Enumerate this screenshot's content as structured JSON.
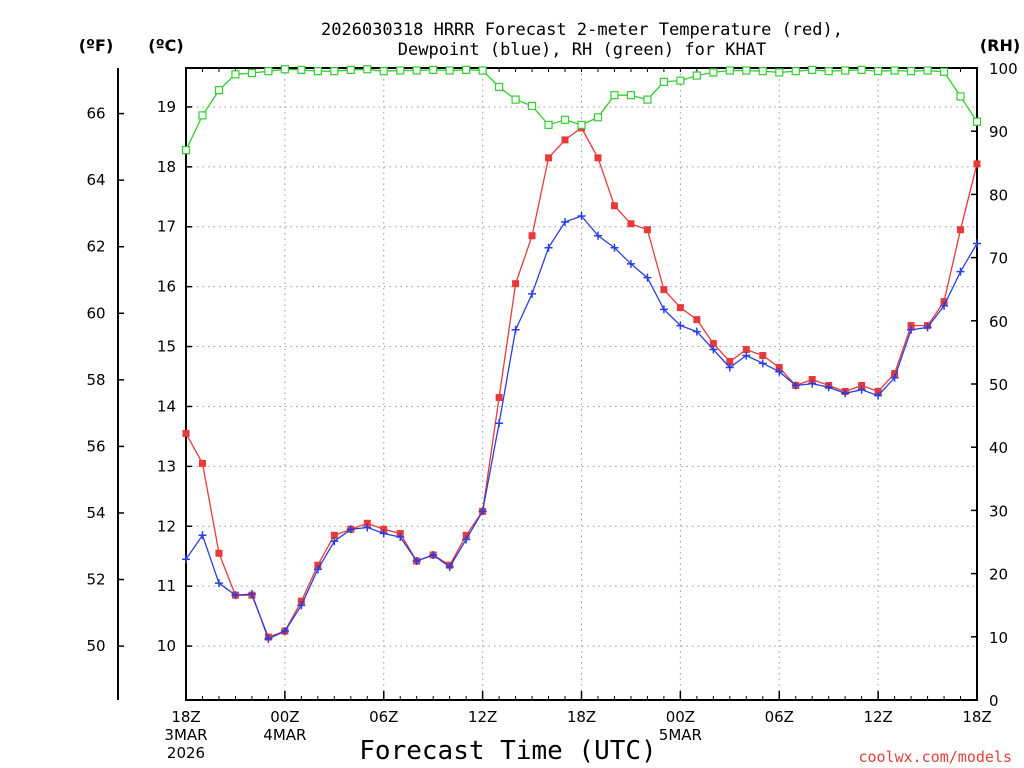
{
  "chart_data": {
    "type": "line",
    "title_line1": "2026030318 HRRR Forecast 2-meter Temperature (red),",
    "title_line2": "Dewpoint (blue), RH (green) for KHAT",
    "xlabel": "Forecast Time (UTC)",
    "credit": "coolwx.com/models",
    "ylabel_f": "(ºF)",
    "ylabel_c": "(ºC)",
    "ylabel_rh": "(RH)",
    "ylim_c": [
      9.1,
      19.65
    ],
    "ylim_rh": [
      0,
      100
    ],
    "yticks_c": [
      10,
      11,
      12,
      13,
      14,
      15,
      16,
      17,
      18,
      19
    ],
    "yticks_f": [
      50,
      52,
      54,
      56,
      58,
      60,
      62,
      64,
      66
    ],
    "yticks_rh": [
      0,
      10,
      20,
      30,
      40,
      50,
      60,
      70,
      80,
      90,
      100
    ],
    "x_hours": [
      0,
      1,
      2,
      3,
      4,
      5,
      6,
      7,
      8,
      9,
      10,
      11,
      12,
      13,
      14,
      15,
      16,
      17,
      18,
      19,
      20,
      21,
      22,
      23,
      24,
      25,
      26,
      27,
      28,
      29,
      30,
      31,
      32,
      33,
      34,
      35,
      36,
      37,
      38,
      39,
      40,
      41,
      42,
      43,
      44,
      45,
      46,
      47,
      48
    ],
    "x_ticks": [
      {
        "hour": 0,
        "lines": [
          "18Z",
          "3MAR",
          "2026"
        ]
      },
      {
        "hour": 6,
        "lines": [
          "00Z",
          "4MAR"
        ]
      },
      {
        "hour": 12,
        "lines": [
          "06Z"
        ]
      },
      {
        "hour": 18,
        "lines": [
          "12Z"
        ]
      },
      {
        "hour": 24,
        "lines": [
          "18Z"
        ]
      },
      {
        "hour": 30,
        "lines": [
          "00Z",
          "5MAR"
        ]
      },
      {
        "hour": 36,
        "lines": [
          "06Z"
        ]
      },
      {
        "hour": 42,
        "lines": [
          "12Z"
        ]
      },
      {
        "hour": 48,
        "lines": [
          "18Z"
        ]
      }
    ],
    "series": [
      {
        "name": "Temperature",
        "axis": "c",
        "color": "#e83a3a",
        "marker": "square",
        "values": [
          13.55,
          13.05,
          11.55,
          10.85,
          10.85,
          10.15,
          10.25,
          10.75,
          11.35,
          11.85,
          11.95,
          12.05,
          11.95,
          11.88,
          11.42,
          11.52,
          11.35,
          11.85,
          12.25,
          14.15,
          16.05,
          16.85,
          18.15,
          18.45,
          18.65,
          18.15,
          17.35,
          17.05,
          16.95,
          15.95,
          15.65,
          15.45,
          15.05,
          14.75,
          14.95,
          14.85,
          14.65,
          14.35,
          14.45,
          14.35,
          14.25,
          14.35,
          14.25,
          14.55,
          15.35,
          15.35,
          15.75,
          16.95,
          18.05
        ]
      },
      {
        "name": "Dewpoint",
        "axis": "c",
        "color": "#2a3fe0",
        "marker": "plus",
        "values": [
          11.45,
          11.85,
          11.05,
          10.85,
          10.87,
          10.12,
          10.25,
          10.68,
          11.28,
          11.75,
          11.95,
          11.98,
          11.88,
          11.82,
          11.42,
          11.52,
          11.32,
          11.78,
          12.25,
          13.72,
          15.28,
          15.88,
          16.65,
          17.08,
          17.18,
          16.85,
          16.65,
          16.38,
          16.15,
          15.62,
          15.35,
          15.25,
          14.95,
          14.65,
          14.85,
          14.72,
          14.58,
          14.35,
          14.38,
          14.32,
          14.22,
          14.28,
          14.18,
          14.48,
          15.28,
          15.32,
          15.68,
          16.25,
          16.72
        ]
      },
      {
        "name": "RH",
        "axis": "rh",
        "color": "#2fd02f",
        "marker": "open-square",
        "values": [
          87,
          92.5,
          96.5,
          99,
          99.2,
          99.5,
          99.8,
          99.7,
          99.5,
          99.5,
          99.7,
          99.8,
          99.5,
          99.6,
          99.6,
          99.7,
          99.6,
          99.7,
          99.6,
          97,
          95,
          94,
          91,
          91.8,
          91,
          92.2,
          95.7,
          95.7,
          95,
          97.8,
          98,
          98.8,
          99.3,
          99.6,
          99.6,
          99.5,
          99.3,
          99.5,
          99.7,
          99.5,
          99.6,
          99.7,
          99.5,
          99.6,
          99.5,
          99.6,
          99.4,
          95.5,
          91.5
        ]
      }
    ]
  }
}
